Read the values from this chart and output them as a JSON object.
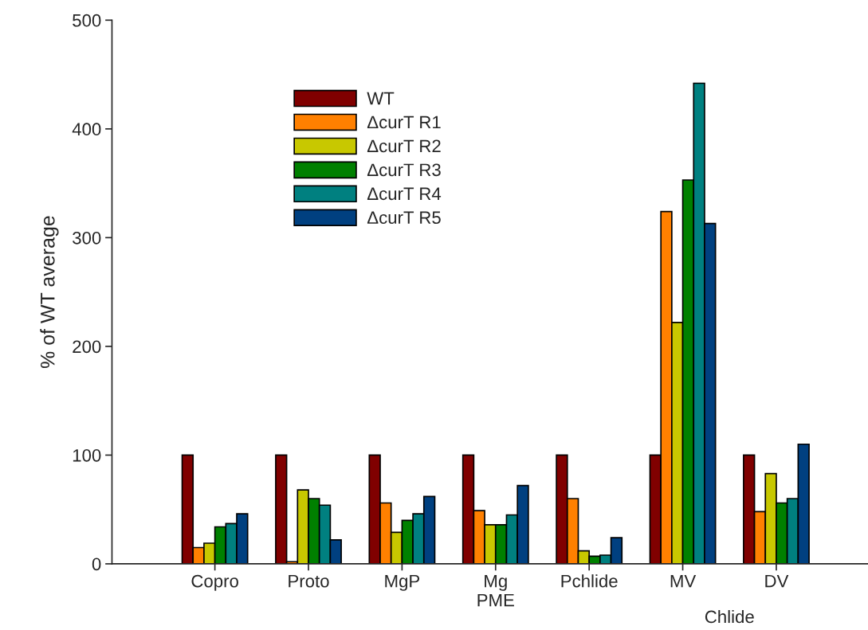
{
  "chart_data": {
    "type": "bar",
    "ylabel": "% of WT average",
    "categories": [
      "Copro",
      "Proto",
      "MgP",
      "Mg\nPME",
      "Pchlide",
      "MV",
      "DV"
    ],
    "series": [
      {
        "name": "WT",
        "color": "#800000",
        "values": [
          100,
          100,
          100,
          100,
          100,
          100,
          100
        ]
      },
      {
        "name": "ΔcurT R1",
        "color": "#ff8000",
        "values": [
          15,
          2,
          56,
          49,
          60,
          324,
          48
        ]
      },
      {
        "name": "ΔcurT R2",
        "color": "#c8c800",
        "values": [
          19,
          68,
          29,
          36,
          12,
          222,
          83
        ]
      },
      {
        "name": "ΔcurT R3",
        "color": "#008000",
        "values": [
          34,
          60,
          40,
          36,
          7,
          353,
          56
        ]
      },
      {
        "name": "ΔcurT R4",
        "color": "#008080",
        "values": [
          37,
          54,
          46,
          45,
          8,
          442,
          60
        ]
      },
      {
        "name": "ΔcurT R5",
        "color": "#004080",
        "values": [
          46,
          22,
          62,
          72,
          24,
          313,
          110
        ]
      }
    ],
    "annotations": [
      "Chlide"
    ],
    "ylim": [
      0,
      500
    ],
    "yticks": [
      0,
      100,
      200,
      300,
      400,
      500
    ],
    "grid": false,
    "legend": "top left"
  }
}
